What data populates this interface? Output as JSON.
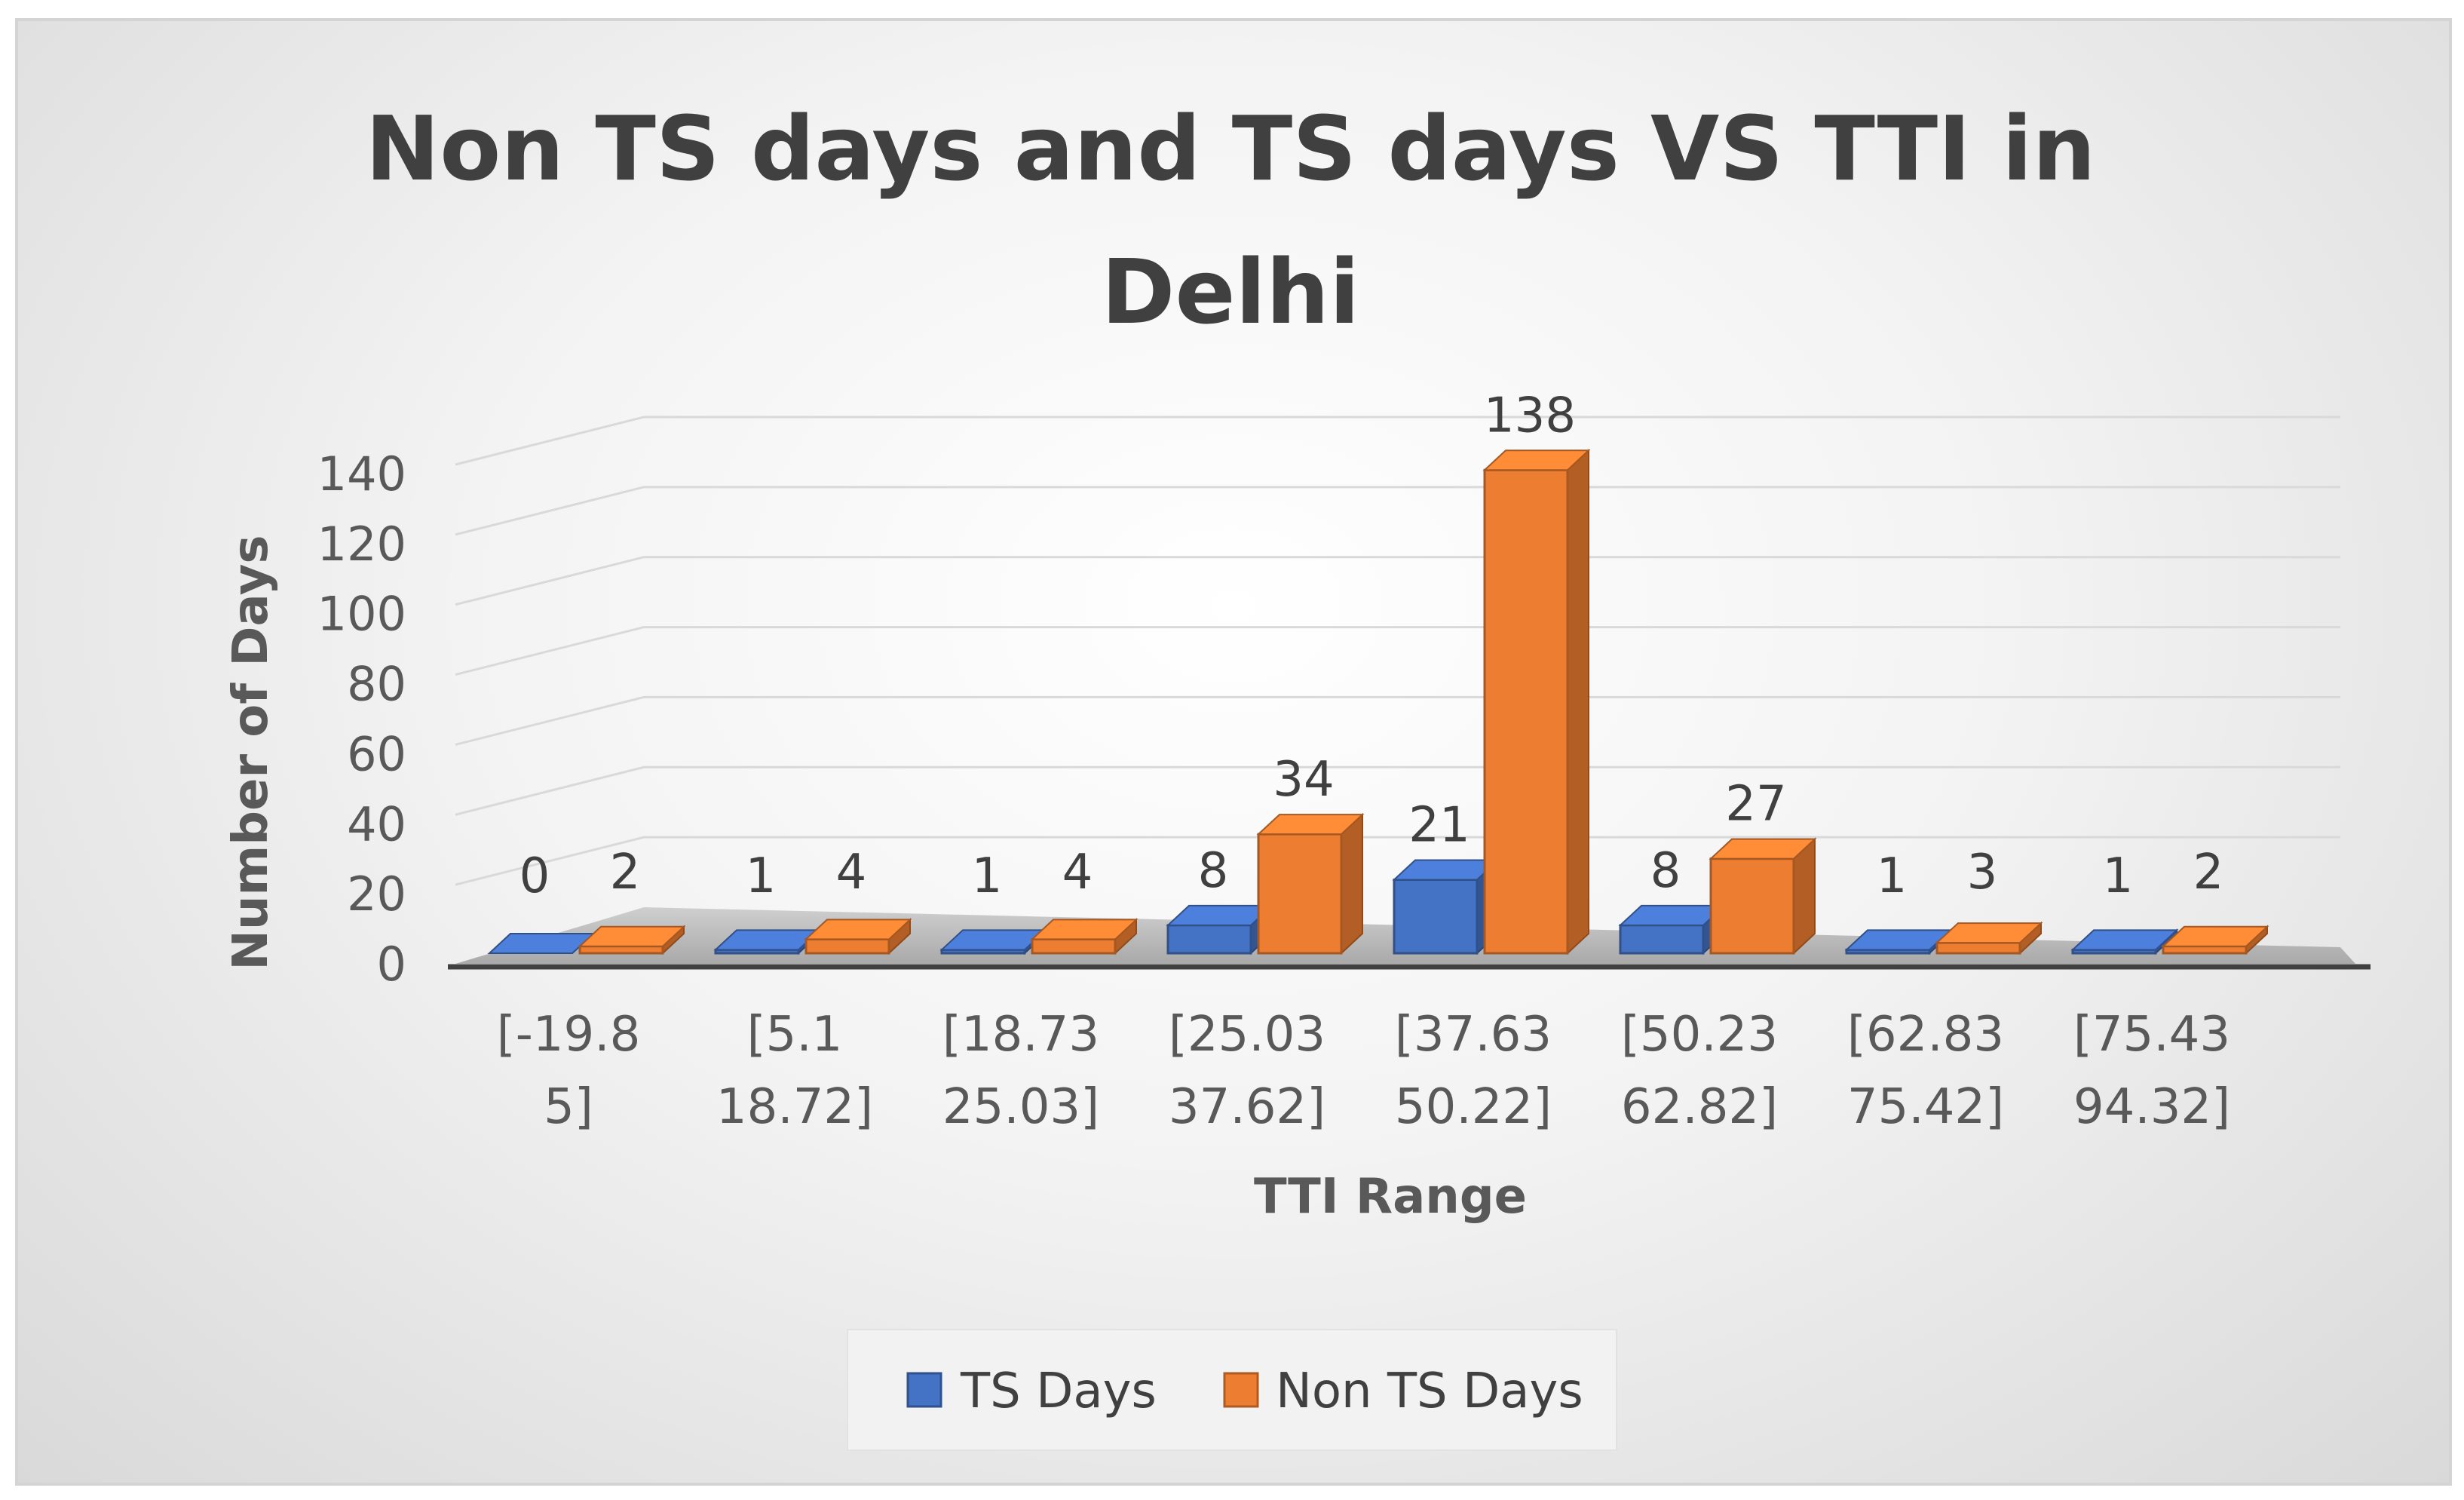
{
  "chart_data": {
    "type": "bar",
    "title_lines": [
      "Non TS days and TS days VS TTI in",
      "Delhi"
    ],
    "xlabel": "TTI Range",
    "ylabel": "Number of Days",
    "categories": [
      [
        "[-19.8",
        "5]"
      ],
      [
        "[5.1",
        "18.72]"
      ],
      [
        "[18.73",
        "25.03]"
      ],
      [
        "[25.03",
        "37.62]"
      ],
      [
        "[37.63",
        "50.22]"
      ],
      [
        "[50.23",
        "62.82]"
      ],
      [
        "[62.83",
        "75.42]"
      ],
      [
        "[75.43",
        "94.32]"
      ]
    ],
    "series": [
      {
        "name": "TS Days",
        "values": [
          0,
          1,
          1,
          8,
          21,
          8,
          1,
          1
        ]
      },
      {
        "name": "Non TS Days",
        "values": [
          2,
          4,
          4,
          34,
          138,
          27,
          3,
          2
        ]
      }
    ],
    "ylim": [
      0,
      140
    ],
    "yticks": [
      "0",
      "20",
      "40",
      "60",
      "80",
      "100",
      "120",
      "140"
    ],
    "grid": true,
    "legend_position": "bottom",
    "colors": {
      "ts": "#4472c4",
      "non_ts": "#ed7d31"
    }
  }
}
